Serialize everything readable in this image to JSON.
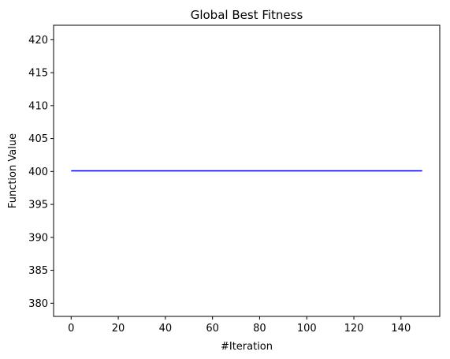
{
  "chart_data": {
    "type": "line",
    "title": "Global Best Fitness",
    "xlabel": "#Iteration",
    "ylabel": "Function Value",
    "xlim": [
      -7.45,
      156.45
    ],
    "ylim": [
      378.0,
      422.2
    ],
    "xticks": [
      0,
      20,
      40,
      60,
      80,
      100,
      120,
      140
    ],
    "yticks": [
      380,
      385,
      390,
      395,
      400,
      405,
      410,
      415,
      420
    ],
    "grid": false,
    "series": [
      {
        "color": "#0000ff",
        "x": [
          0,
          149
        ],
        "y": [
          400.1,
          400.1
        ]
      }
    ]
  }
}
